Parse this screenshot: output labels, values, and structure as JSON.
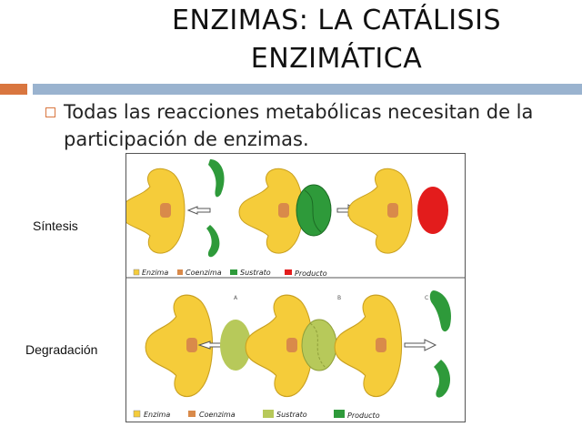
{
  "slide": {
    "title_line1": "ENZIMAS: LA CATÁLISIS",
    "title_line2": "ENZIMÁTICA",
    "bullet": "Todas las reacciones metabólicas necesitan de la participación de enzimas.",
    "label_synthesis": "Síntesis",
    "label_degradation": "Degradación"
  },
  "figure": {
    "top_legend": [
      "Enzima",
      "Coenzima",
      "Sustrato",
      "Producto"
    ],
    "bottom_legend": [
      "Enzima",
      "Coenzima",
      "Sustrato",
      "Producto"
    ],
    "panel_letters": [
      "A",
      "B",
      "C"
    ]
  },
  "colors": {
    "enzyme": "#f5cc3a",
    "enzyme_stroke": "#c9a020",
    "coenzyme": "#d98a4a",
    "substrate_top": "#2e9a3a",
    "product_top": "#e31c1c",
    "substrate_bottom": "#b7c95a",
    "product_bottom": "#2e9a3a",
    "accent_orange": "#d9763f",
    "accent_blue": "#9ab3cf"
  }
}
